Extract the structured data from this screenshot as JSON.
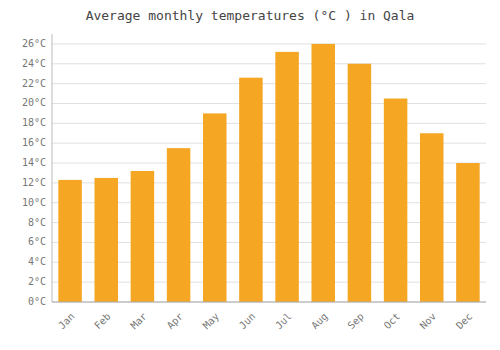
{
  "chart_data": {
    "type": "bar",
    "title": "Average monthly temperatures (°C ) in Qala",
    "categories": [
      "Jan",
      "Feb",
      "Mar",
      "Apr",
      "May",
      "Jun",
      "Jul",
      "Aug",
      "Sep",
      "Oct",
      "Nov",
      "Dec"
    ],
    "values": [
      12.3,
      12.5,
      13.2,
      15.5,
      19.0,
      22.6,
      25.2,
      26.0,
      24.0,
      20.5,
      17.0,
      14.0
    ],
    "color": "#F5A623",
    "ylim": [
      0,
      27
    ],
    "yticks": [
      {
        "value": 0,
        "label": "0°C"
      },
      {
        "value": 2,
        "label": "2°C"
      },
      {
        "value": 4,
        "label": "4°C"
      },
      {
        "value": 6,
        "label": "6°C"
      },
      {
        "value": 8,
        "label": "8°C"
      },
      {
        "value": 10,
        "label": "10°C"
      },
      {
        "value": 12,
        "label": "12°C"
      },
      {
        "value": 14,
        "label": "14°C"
      },
      {
        "value": 16,
        "label": "16°C"
      },
      {
        "value": 18,
        "label": "18°C"
      },
      {
        "value": 20,
        "label": "20°C"
      },
      {
        "value": 22,
        "label": "22°C"
      },
      {
        "value": 24,
        "label": "24°C"
      },
      {
        "value": 26,
        "label": "26°C"
      }
    ],
    "grid": true
  }
}
